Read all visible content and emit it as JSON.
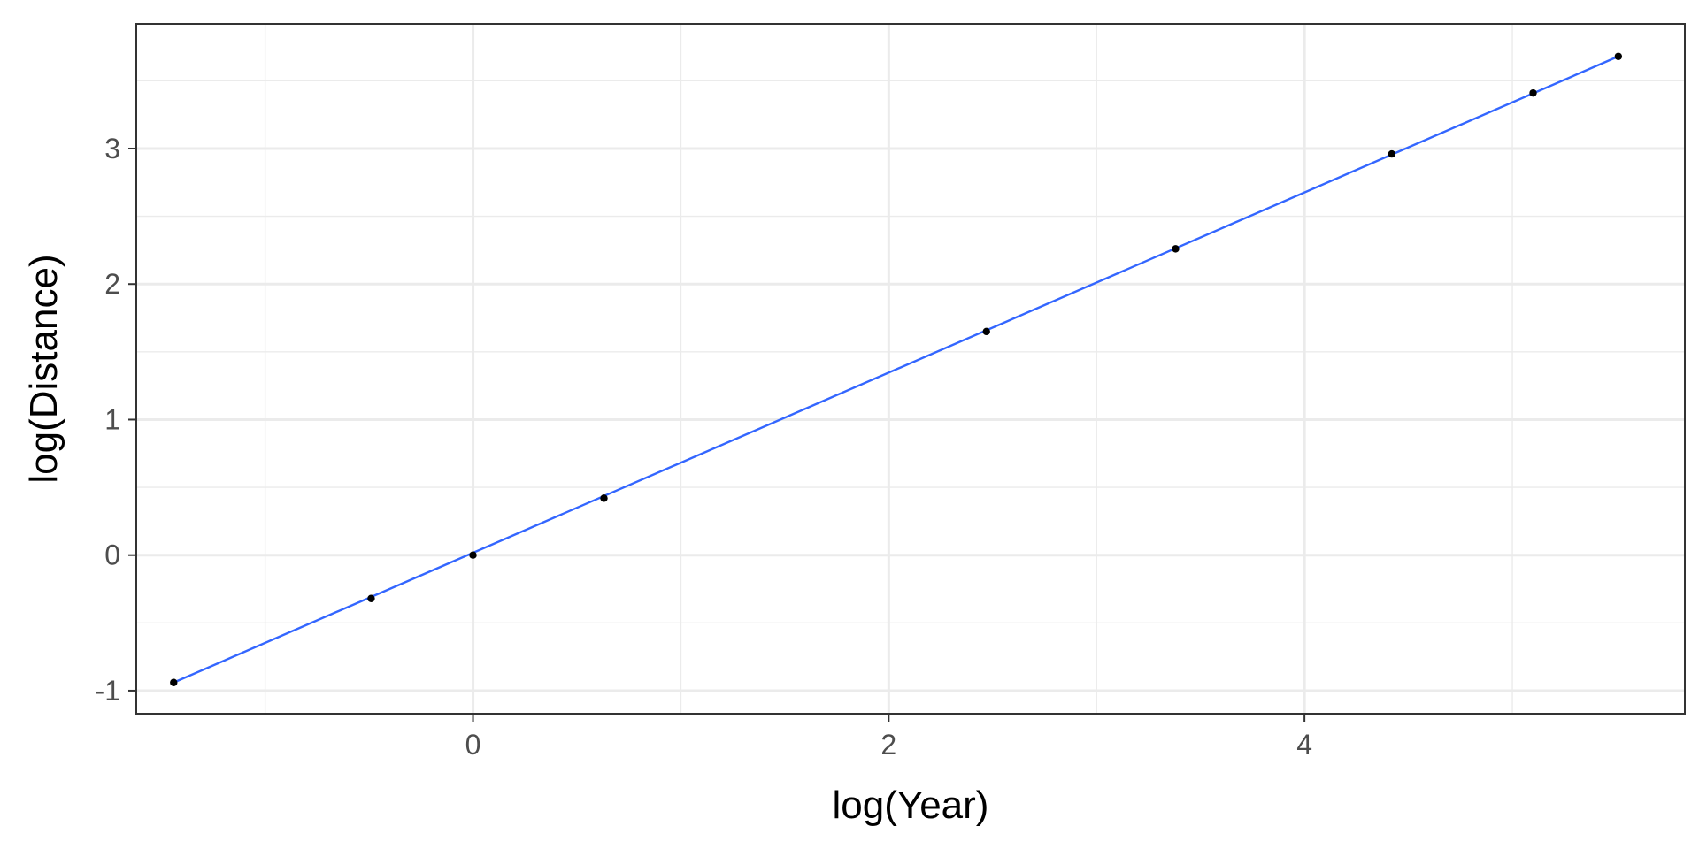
{
  "chart_data": {
    "type": "scatter",
    "title": "",
    "xlabel": "log(Year)",
    "ylabel": "log(Distance)",
    "xlim": [
      -1.62,
      5.83
    ],
    "ylim": [
      -1.17,
      3.92
    ],
    "x_ticks": [
      0,
      2,
      4
    ],
    "x_tick_labels": [
      "0",
      "2",
      "4"
    ],
    "y_ticks": [
      -1,
      0,
      1,
      2,
      3
    ],
    "y_tick_labels": [
      "-1",
      "0",
      "1",
      "2",
      "3"
    ],
    "grid": true,
    "legend": "none",
    "series": [
      {
        "points": [
          {
            "x": -1.44,
            "y": -0.94
          },
          {
            "x": -0.49,
            "y": -0.32
          },
          {
            "x": 0.0,
            "y": 0.0
          },
          {
            "x": 0.63,
            "y": 0.42
          },
          {
            "x": 2.47,
            "y": 1.65
          },
          {
            "x": 3.38,
            "y": 2.26
          },
          {
            "x": 4.42,
            "y": 2.96
          },
          {
            "x": 5.1,
            "y": 3.41
          },
          {
            "x": 5.51,
            "y": 3.68
          }
        ]
      }
    ],
    "fit_line": {
      "x": [
        -1.44,
        5.51
      ],
      "y": [
        -0.94,
        3.68
      ]
    },
    "colors": {
      "points": "#000000",
      "fit_line": "#3366ff",
      "grid": "#ebebeb",
      "panel_border": "#333333"
    }
  }
}
